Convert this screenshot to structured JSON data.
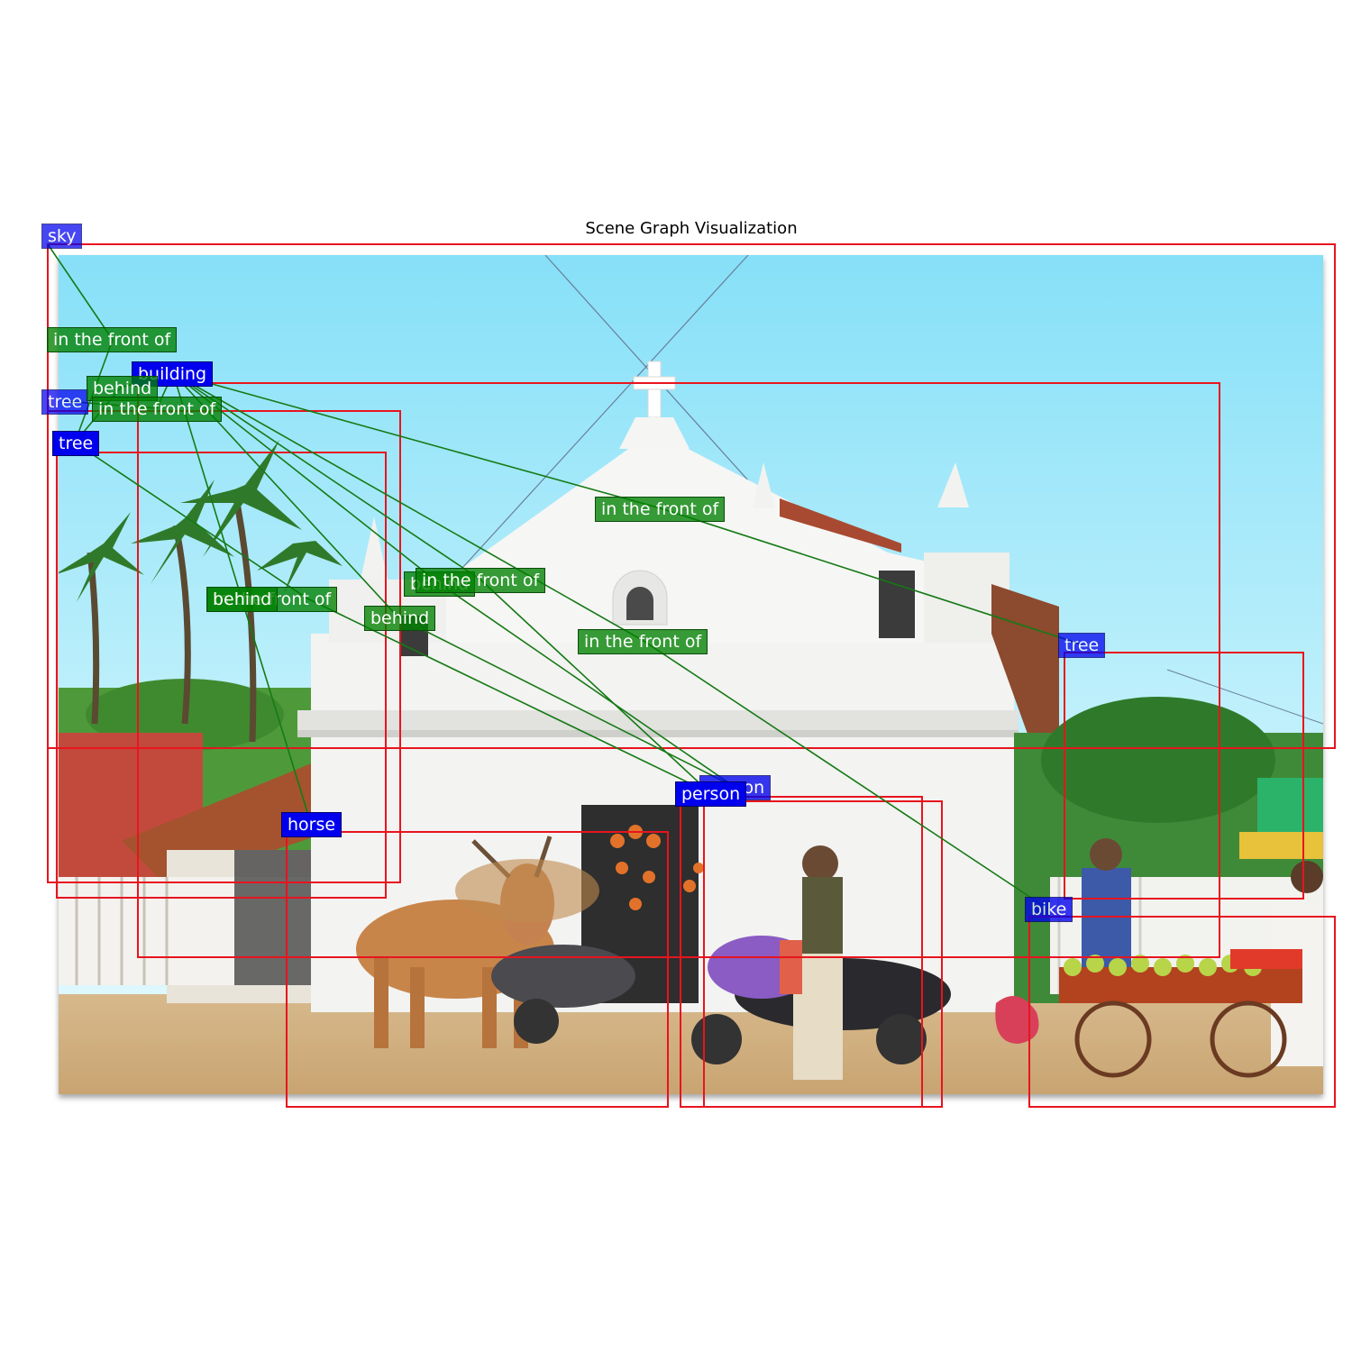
{
  "title": "Scene Graph Visualization",
  "colors": {
    "box": "#e8141e",
    "edge": "#157a15",
    "object_label_bg": "#0000ee",
    "relation_label_bg": "#1f8a1f"
  },
  "objects": [
    {
      "id": "sky",
      "label": "sky"
    },
    {
      "id": "building",
      "label": "building"
    },
    {
      "id": "tree1",
      "label": "tree"
    },
    {
      "id": "tree2",
      "label": "tree"
    },
    {
      "id": "tree3",
      "label": "tree"
    },
    {
      "id": "horse",
      "label": "horse"
    },
    {
      "id": "person1",
      "label": "person"
    },
    {
      "id": "person2",
      "label": "person"
    },
    {
      "id": "bike",
      "label": "bike"
    }
  ],
  "relations": [
    {
      "id": "r1",
      "label": "in the front of",
      "subject": "sky",
      "object": "tree2"
    },
    {
      "id": "r2",
      "label": "behind",
      "subject": "building",
      "object": "horse"
    },
    {
      "id": "r3",
      "label": "in the front of",
      "subject": "building",
      "object": "tree3"
    },
    {
      "id": "r4",
      "label": "in the front of",
      "subject": "tree2",
      "object": "person1"
    },
    {
      "id": "r5",
      "label": "behind",
      "subject": "building",
      "object": "person2"
    },
    {
      "id": "r6",
      "label": "in the front of",
      "subject": "building",
      "object": "person1"
    },
    {
      "id": "r7",
      "label": "behind",
      "subject": "building",
      "object": "person2"
    },
    {
      "id": "r8",
      "label": "in the front of",
      "subject": "building",
      "object": "bike"
    },
    {
      "id": "r9",
      "label": "behind",
      "subject": "building",
      "object": "tree2"
    },
    {
      "id": "r10",
      "label": "in the front of",
      "subject": "tree1",
      "object": "building"
    }
  ]
}
